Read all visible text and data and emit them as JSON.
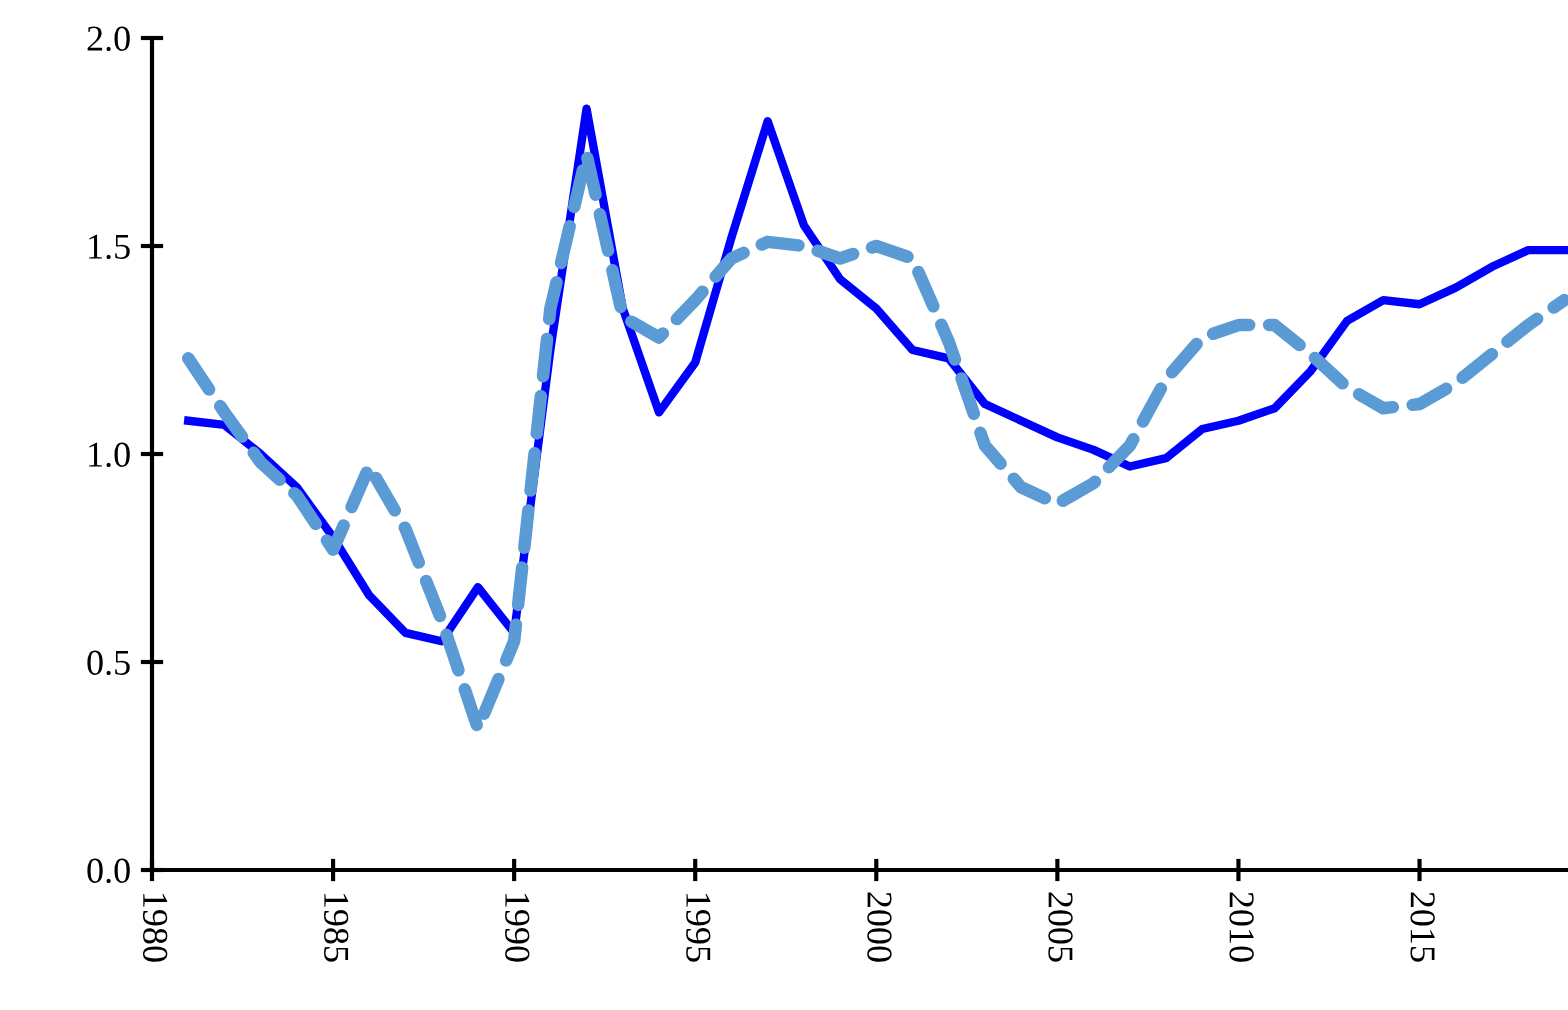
{
  "chart_data": {
    "type": "line",
    "x": [
      1981,
      1982,
      1983,
      1984,
      1985,
      1986,
      1987,
      1988,
      1989,
      1990,
      1991,
      1992,
      1993,
      1994,
      1995,
      1996,
      1997,
      1998,
      1999,
      2000,
      2001,
      2002,
      2003,
      2004,
      2005,
      2006,
      2007,
      2008,
      2009,
      2010,
      2011,
      2012,
      2013,
      2014,
      2015,
      2016,
      2017,
      2018,
      2019
    ],
    "series": [
      {
        "color": "#0000ff",
        "line_style": "solid",
        "values": [
          1.08,
          1.07,
          1.0,
          0.92,
          0.8,
          0.66,
          0.57,
          0.55,
          0.68,
          0.57,
          1.25,
          1.83,
          1.35,
          1.1,
          1.22,
          1.52,
          1.8,
          1.55,
          1.42,
          1.35,
          1.25,
          1.23,
          1.12,
          1.08,
          1.04,
          1.01,
          0.97,
          0.99,
          1.06,
          1.08,
          1.11,
          1.2,
          1.32,
          1.37,
          1.36,
          1.4,
          1.45,
          1.49,
          1.49
        ]
      },
      {
        "color": "#5b9bd5",
        "line_style": "dashed",
        "values": [
          1.23,
          1.1,
          0.98,
          0.9,
          0.77,
          0.97,
          0.82,
          0.6,
          0.34,
          0.55,
          1.35,
          1.72,
          1.33,
          1.28,
          1.37,
          1.47,
          1.51,
          1.5,
          1.47,
          1.5,
          1.47,
          1.27,
          1.02,
          0.92,
          0.88,
          0.93,
          1.02,
          1.18,
          1.28,
          1.31,
          1.31,
          1.24,
          1.16,
          1.11,
          1.12,
          1.17,
          1.24,
          1.31,
          1.37
        ]
      }
    ],
    "xlim": [
      1980,
      2019.1
    ],
    "xticks": [
      1980,
      1985,
      1990,
      1995,
      2000,
      2005,
      2010,
      2015
    ],
    "ylim": [
      0.0,
      2.0
    ],
    "yticks": [
      {
        "value": 0.0,
        "label": "0.0"
      },
      {
        "value": 0.5,
        "label": "0.5"
      },
      {
        "value": 1.0,
        "label": "1.0"
      },
      {
        "value": 1.5,
        "label": "1.5"
      },
      {
        "value": 2.0,
        "label": "2.0"
      }
    ],
    "grid": false,
    "marker": "none"
  }
}
